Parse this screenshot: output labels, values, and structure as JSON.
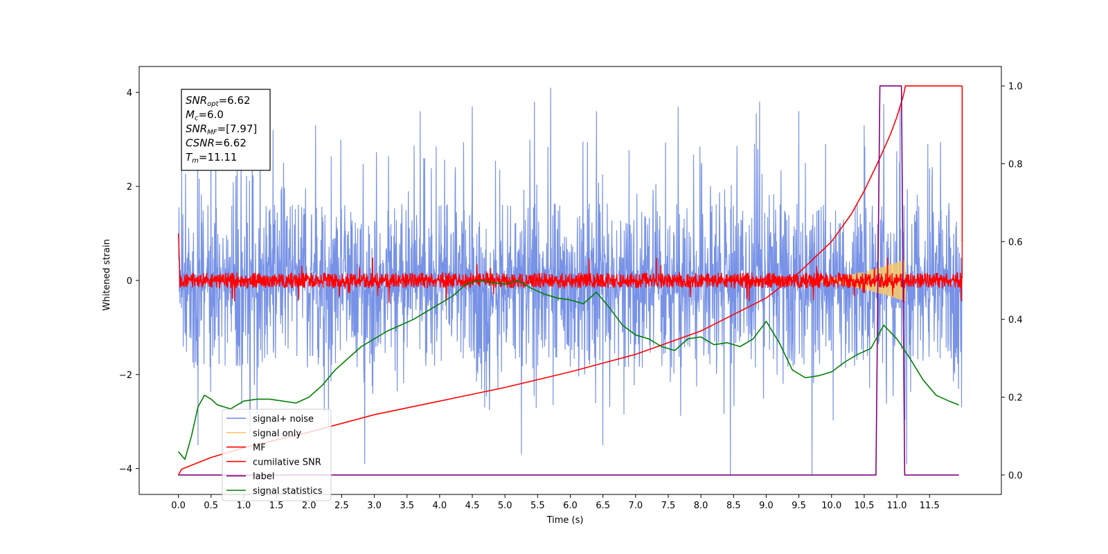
{
  "chart_data": {
    "type": "line",
    "title": "",
    "xlabel": "Time (s)",
    "ylabel": "Whitened strain",
    "xlim": [
      -0.6,
      12.6
    ],
    "ylim": [
      -4.55,
      4.55
    ],
    "ylim_right": [
      -0.05,
      1.05
    ],
    "x_ticks": [
      0.0,
      0.5,
      1.0,
      1.5,
      2.0,
      2.5,
      3.0,
      3.5,
      4.0,
      4.5,
      5.0,
      5.5,
      6.0,
      6.5,
      7.0,
      7.5,
      8.0,
      8.5,
      9.0,
      9.5,
      10.0,
      10.5,
      11.0,
      11.5
    ],
    "x_tick_labels": [
      "0.0",
      "0.5",
      "1.0",
      "1.5",
      "2.0",
      "2.5",
      "3.0",
      "3.5",
      "4.0",
      "4.5",
      "5.0",
      "5.5",
      "6.0",
      "6.5",
      "7.0",
      "7.5",
      "8.0",
      "8.5",
      "9.0",
      "9.5",
      "10.0",
      "10.5",
      "11.0",
      "11.5"
    ],
    "y_ticks": [
      -4,
      -2,
      0,
      2,
      4
    ],
    "y_tick_labels": [
      "−4",
      "−2",
      "0",
      "2",
      "4"
    ],
    "y_right_ticks": [
      0.0,
      0.2,
      0.4,
      0.6,
      0.8,
      1.0
    ],
    "y_right_tick_labels": [
      "0.0",
      "0.2",
      "0.4",
      "0.6",
      "0.8",
      "1.0"
    ],
    "grid": false,
    "legend_position": "lower-left",
    "info_box": {
      "lines": [
        {
          "sym": "SNR",
          "sub": "opt",
          "val": "=6.62"
        },
        {
          "sym": "M",
          "sub": "c",
          "val": "=6.0"
        },
        {
          "sym": "SNR",
          "sub": "MF",
          "val": "=[7.97]"
        },
        {
          "sym": "CSNR",
          "sub": "",
          "val": "=6.62"
        },
        {
          "sym": "T",
          "sub": "m",
          "val": "=11.11"
        }
      ]
    },
    "series": [
      {
        "name": "signal+ noise",
        "color": "#6b89e4",
        "axis": "left",
        "kind": "noise",
        "center": 0.0,
        "band": [
          -1.7,
          1.5
        ],
        "spikes": [
          {
            "x": 0.05,
            "y": 2.5
          },
          {
            "x": 0.5,
            "y": 3.4
          },
          {
            "x": 1.25,
            "y": 3.3
          },
          {
            "x": 1.45,
            "y": 3.2
          },
          {
            "x": 2.1,
            "y": 3.3
          },
          {
            "x": 2.85,
            "y": 3.7
          },
          {
            "x": 3.7,
            "y": 3.6
          },
          {
            "x": 4.5,
            "y": 3.7
          },
          {
            "x": 5.45,
            "y": 3.8
          },
          {
            "x": 5.7,
            "y": 4.1
          },
          {
            "x": 6.4,
            "y": 3.6
          },
          {
            "x": 7.65,
            "y": 3.7
          },
          {
            "x": 8.85,
            "y": 3.55
          },
          {
            "x": 8.9,
            "y": 3.8
          },
          {
            "x": 9.5,
            "y": 3.6
          },
          {
            "x": 10.5,
            "y": 3.3
          },
          {
            "x": 10.8,
            "y": 3.75
          },
          {
            "x": 11.05,
            "y": 3.7
          },
          {
            "x": 11.15,
            "y": 3.3
          },
          {
            "x": 0.3,
            "y": -3.5
          },
          {
            "x": 1.1,
            "y": -3.3
          },
          {
            "x": 2.3,
            "y": -3.1
          },
          {
            "x": 2.85,
            "y": -3.9
          },
          {
            "x": 5.25,
            "y": -3.7
          },
          {
            "x": 6.5,
            "y": -3.5
          },
          {
            "x": 8.45,
            "y": -4.15
          },
          {
            "x": 9.7,
            "y": -4.15
          },
          {
            "x": 11.15,
            "y": -3.9
          }
        ]
      },
      {
        "name": "signal only",
        "color": "#f8c96a",
        "axis": "left",
        "kind": "chirp",
        "start": 9.6,
        "end": 11.13,
        "amp_max": 0.45
      },
      {
        "name": "MF",
        "color": "#ff0000",
        "axis": "left",
        "kind": "mf",
        "center": 0.0,
        "band": [
          -0.15,
          0.15
        ],
        "start_value": 1.0
      },
      {
        "name": "cumilative SNR",
        "color": "#ff0000",
        "axis": "right",
        "kind": "line",
        "x": [
          0.0,
          0.05,
          0.5,
          1.0,
          2.0,
          3.0,
          4.0,
          5.0,
          6.0,
          7.0,
          8.0,
          9.0,
          9.5,
          10.0,
          10.3,
          10.5,
          10.7,
          10.9,
          11.0,
          11.1,
          11.13,
          12.0
        ],
        "y": [
          0.0,
          0.015,
          0.045,
          0.07,
          0.11,
          0.155,
          0.19,
          0.225,
          0.265,
          0.31,
          0.37,
          0.455,
          0.52,
          0.6,
          0.67,
          0.73,
          0.8,
          0.875,
          0.92,
          0.975,
          1.0,
          1.0
        ],
        "end_mark": [
          12.0,
          0.6
        ]
      },
      {
        "name": "label",
        "color": "#800080",
        "axis": "right",
        "kind": "line",
        "x": [
          0.0,
          10.68,
          10.74,
          11.07,
          11.12,
          11.95
        ],
        "y": [
          0.0,
          0.0,
          1.0,
          1.0,
          0.0,
          0.0
        ]
      },
      {
        "name": "signal statistics",
        "color": "#008000",
        "axis": "right",
        "kind": "line",
        "x": [
          0.0,
          0.1,
          0.2,
          0.3,
          0.4,
          0.5,
          0.6,
          0.7,
          0.8,
          1.0,
          1.2,
          1.4,
          1.6,
          1.8,
          2.0,
          2.2,
          2.4,
          2.6,
          2.8,
          3.0,
          3.2,
          3.4,
          3.6,
          3.8,
          4.0,
          4.2,
          4.4,
          4.6,
          4.8,
          5.0,
          5.2,
          5.4,
          5.6,
          5.8,
          6.0,
          6.2,
          6.4,
          6.6,
          6.8,
          7.0,
          7.2,
          7.4,
          7.6,
          7.8,
          8.0,
          8.2,
          8.4,
          8.6,
          8.8,
          9.0,
          9.2,
          9.4,
          9.6,
          9.8,
          10.0,
          10.2,
          10.4,
          10.6,
          10.8,
          11.0,
          11.2,
          11.4,
          11.6,
          11.8,
          11.95
        ],
        "y": [
          0.06,
          0.04,
          0.1,
          0.175,
          0.205,
          0.195,
          0.18,
          0.175,
          0.17,
          0.19,
          0.195,
          0.195,
          0.19,
          0.185,
          0.2,
          0.23,
          0.27,
          0.3,
          0.33,
          0.35,
          0.37,
          0.385,
          0.4,
          0.42,
          0.44,
          0.46,
          0.49,
          0.5,
          0.495,
          0.49,
          0.5,
          0.48,
          0.465,
          0.455,
          0.45,
          0.44,
          0.47,
          0.43,
          0.385,
          0.36,
          0.35,
          0.33,
          0.32,
          0.35,
          0.355,
          0.335,
          0.34,
          0.33,
          0.35,
          0.395,
          0.34,
          0.27,
          0.25,
          0.255,
          0.265,
          0.29,
          0.31,
          0.325,
          0.385,
          0.35,
          0.3,
          0.245,
          0.205,
          0.19,
          0.18
        ]
      }
    ]
  }
}
